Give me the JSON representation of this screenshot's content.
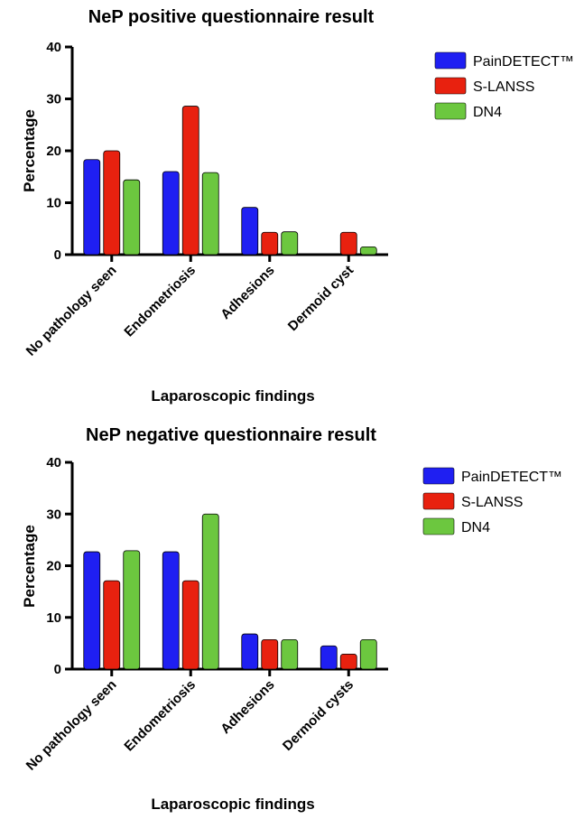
{
  "chart_data": [
    {
      "type": "bar",
      "title": "NeP positive questionnaire result",
      "xlabel": "Laparoscopic findings",
      "ylabel": "Percentage",
      "ylim": [
        0,
        40
      ],
      "yticks": [
        0,
        10,
        20,
        30,
        40
      ],
      "categories": [
        "No pathology seen",
        "Endometriosis",
        "Adhesions",
        "Dermoid cyst"
      ],
      "series": [
        {
          "name": "PainDETECT™",
          "color": "#1f1ff2",
          "values": [
            18.3,
            16.0,
            9.1,
            0
          ]
        },
        {
          "name": "S-LANSS",
          "color": "#e8210f",
          "values": [
            20.0,
            28.6,
            4.3,
            4.3
          ]
        },
        {
          "name": "DN4",
          "color": "#6cc73f",
          "values": [
            14.4,
            15.8,
            4.4,
            1.5
          ]
        }
      ],
      "legend_position": "right",
      "grid": false
    },
    {
      "type": "bar",
      "title": "NeP negative questionnaire result",
      "xlabel": "Laparoscopic findings",
      "ylabel": "Percentage",
      "ylim": [
        0,
        40
      ],
      "yticks": [
        0,
        10,
        20,
        30,
        40
      ],
      "categories": [
        "No pathology seen",
        "Endometriosis",
        "Adhesions",
        "Dermoid cysts"
      ],
      "series": [
        {
          "name": "PainDETECT™",
          "color": "#1f1ff2",
          "values": [
            22.7,
            22.7,
            6.8,
            4.5
          ]
        },
        {
          "name": "S-LANSS",
          "color": "#e8210f",
          "values": [
            17.1,
            17.1,
            5.7,
            2.9
          ]
        },
        {
          "name": "DN4",
          "color": "#6cc73f",
          "values": [
            22.9,
            30.0,
            5.7,
            5.7
          ]
        }
      ],
      "legend_position": "right",
      "grid": false
    }
  ]
}
